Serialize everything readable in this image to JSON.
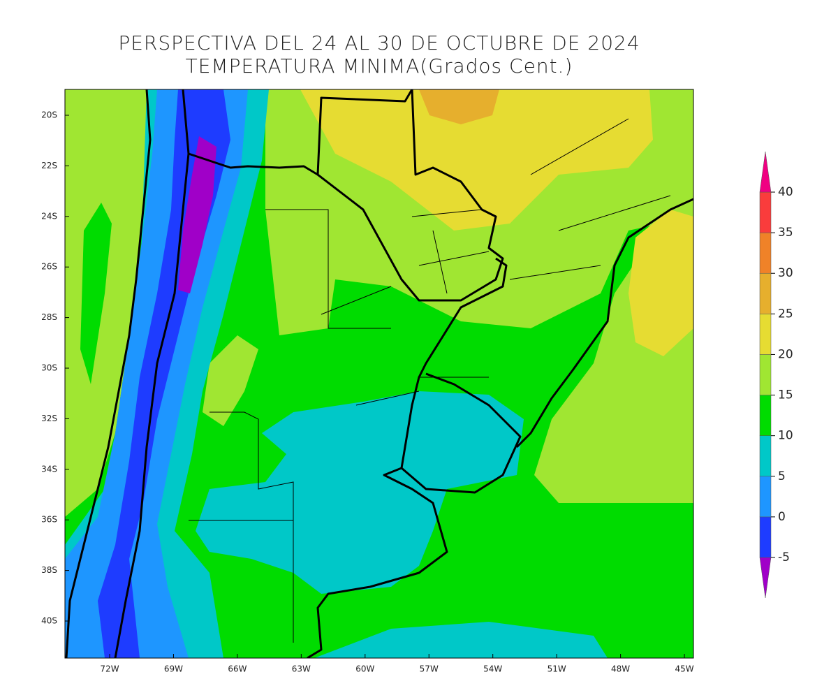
{
  "title": "PERSPECTIVA DEL 24 AL 30 DE OCTUBRE DE 2024",
  "subtitle": "TEMPERATURA MINIMA(Grados Cent.)",
  "map": {
    "lat_labels": [
      "20S",
      "22S",
      "24S",
      "26S",
      "28S",
      "30S",
      "32S",
      "34S",
      "36S",
      "38S",
      "40S"
    ],
    "lon_labels": [
      "72W",
      "69W",
      "66W",
      "63W",
      "60W",
      "57W",
      "54W",
      "51W",
      "48W",
      "45W"
    ]
  },
  "colorbar": {
    "ticks": [
      -5,
      0,
      5,
      10,
      15,
      20,
      25,
      30,
      35,
      40
    ],
    "colors": [
      "#a000c8",
      "#1e3cff",
      "#1e96ff",
      "#00c8c8",
      "#00dc00",
      "#a0e632",
      "#e6dc32",
      "#e6af2d",
      "#f08228",
      "#fa3c3c",
      "#f00082"
    ]
  }
}
